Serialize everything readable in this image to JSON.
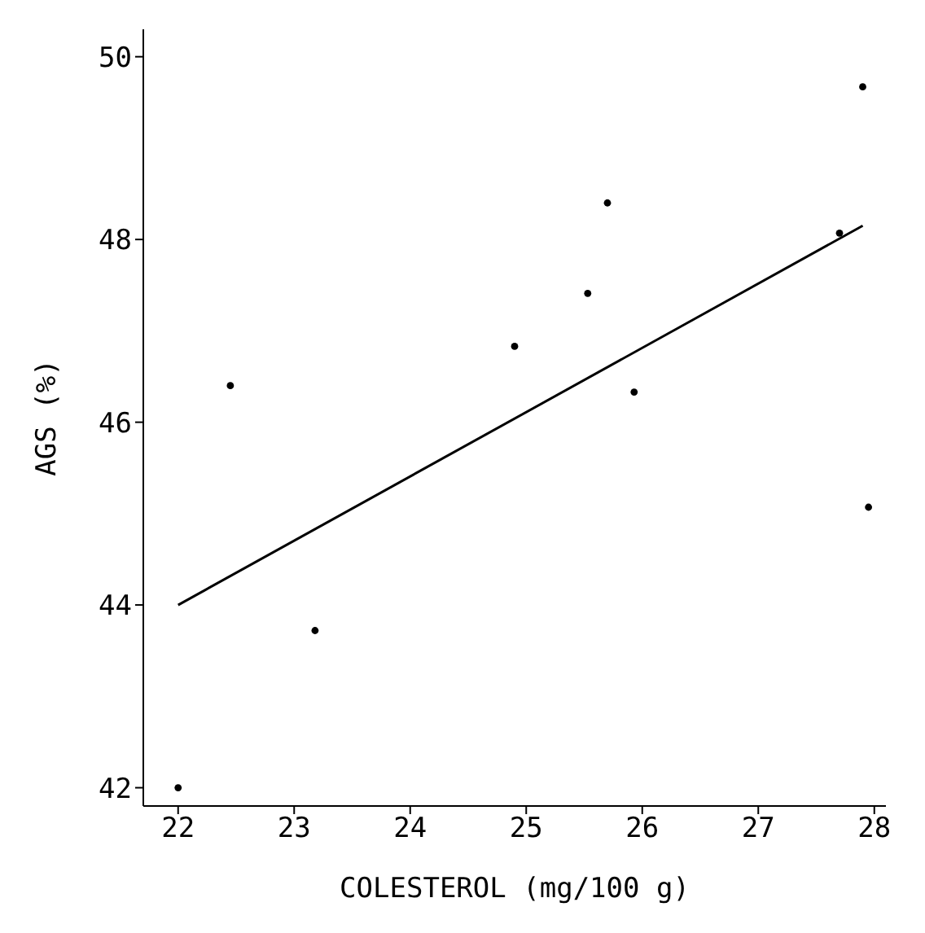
{
  "chart_data": {
    "type": "scatter",
    "xlabel": "COLESTEROL (mg/100 g)",
    "ylabel": "AGS (%)",
    "xlim": [
      21.7,
      28.1
    ],
    "ylim": [
      41.8,
      50.3
    ],
    "xticks": [
      22,
      23,
      24,
      25,
      26,
      27,
      28
    ],
    "yticks": [
      42,
      44,
      46,
      48,
      50
    ],
    "grid": false,
    "marker": "circle",
    "series": [
      {
        "color": "#000000",
        "x": [
          22,
          22.45,
          23.18,
          24.9,
          25.53,
          25.7,
          25.93,
          27.7,
          27.9,
          27.95
        ],
        "values": [
          42,
          46.4,
          43.72,
          46.83,
          47.41,
          48.4,
          46.33,
          48.07,
          49.67,
          45.07
        ]
      },
      {
        "type": "line",
        "color": "#000000",
        "marker": "none",
        "line_style": "solid",
        "x": [
          22,
          27.9
        ],
        "values": [
          44,
          48.15
        ]
      }
    ]
  }
}
